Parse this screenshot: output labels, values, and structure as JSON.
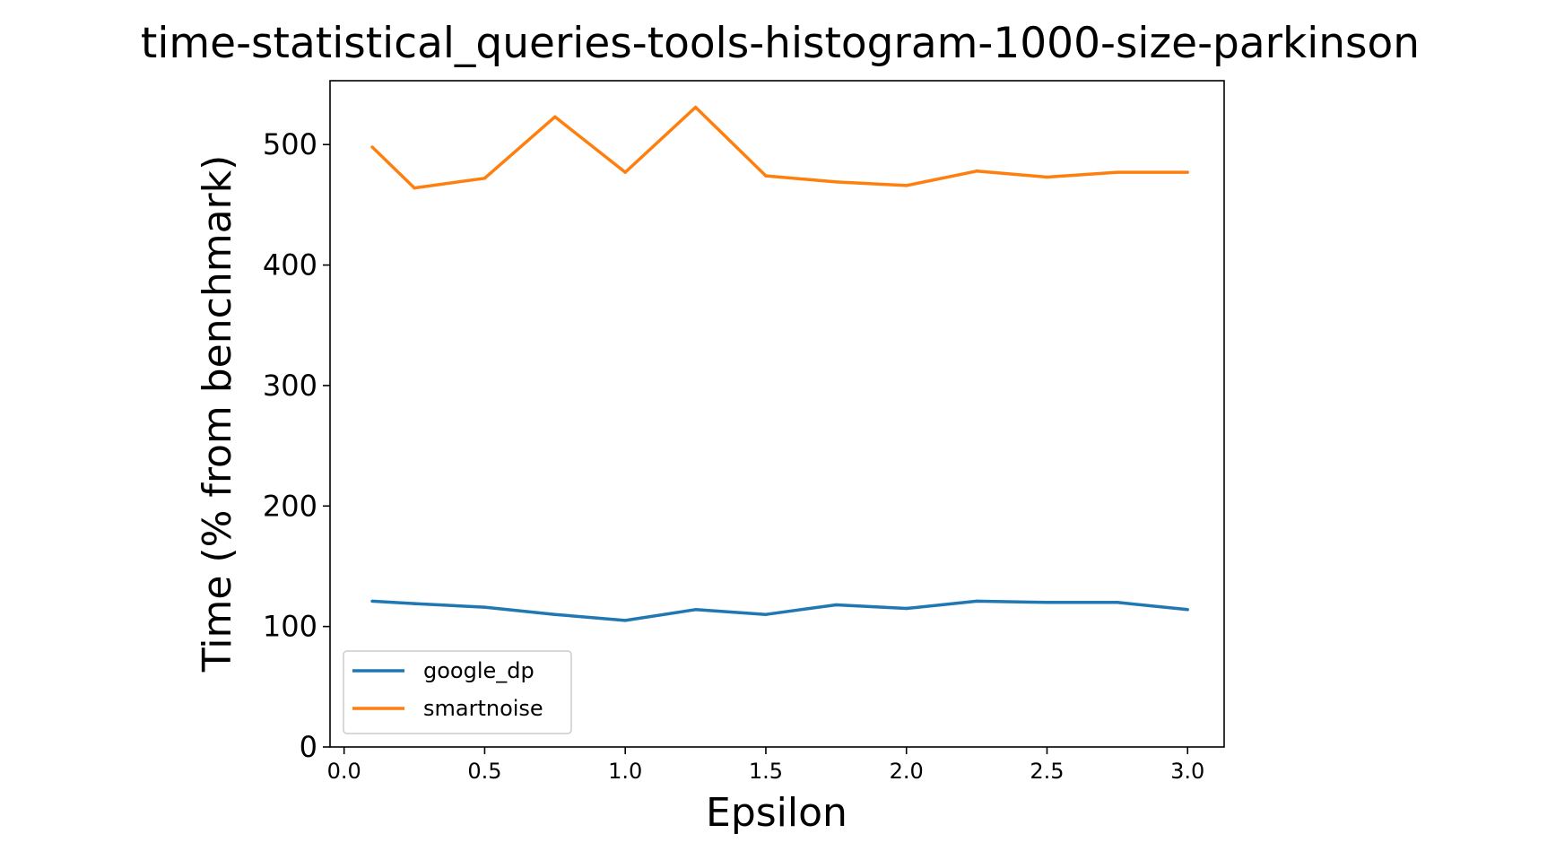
{
  "chart_data": {
    "type": "line",
    "title": "time-statistical_queries-tools-histogram-1000-size-parkinson",
    "xlabel": "Epsilon",
    "ylabel": "Time (% from benchmark)",
    "xlim": [
      -0.05,
      3.13
    ],
    "ylim": [
      0,
      553
    ],
    "xticks": [
      0.0,
      0.5,
      1.0,
      1.5,
      2.0,
      2.5,
      3.0
    ],
    "xtick_labels": [
      "0.0",
      "0.5",
      "1.0",
      "1.5",
      "2.0",
      "2.5",
      "3.0"
    ],
    "yticks": [
      0,
      100,
      200,
      300,
      400,
      500
    ],
    "ytick_labels": [
      "0",
      "100",
      "200",
      "300",
      "400",
      "500"
    ],
    "grid": false,
    "legend_position": "lower-left",
    "x": [
      0.1,
      0.25,
      0.5,
      0.75,
      1.0,
      1.25,
      1.5,
      1.75,
      2.0,
      2.25,
      2.5,
      2.75,
      3.0
    ],
    "series": [
      {
        "name": "google_dp",
        "color": "#1f77b4",
        "values": [
          121,
          119,
          116,
          110,
          105,
          114,
          110,
          118,
          115,
          121,
          120,
          120,
          114
        ]
      },
      {
        "name": "smartnoise",
        "color": "#ff7f0e",
        "values": [
          498,
          464,
          472,
          523,
          477,
          531,
          474,
          469,
          466,
          478,
          473,
          477,
          477
        ]
      }
    ]
  }
}
